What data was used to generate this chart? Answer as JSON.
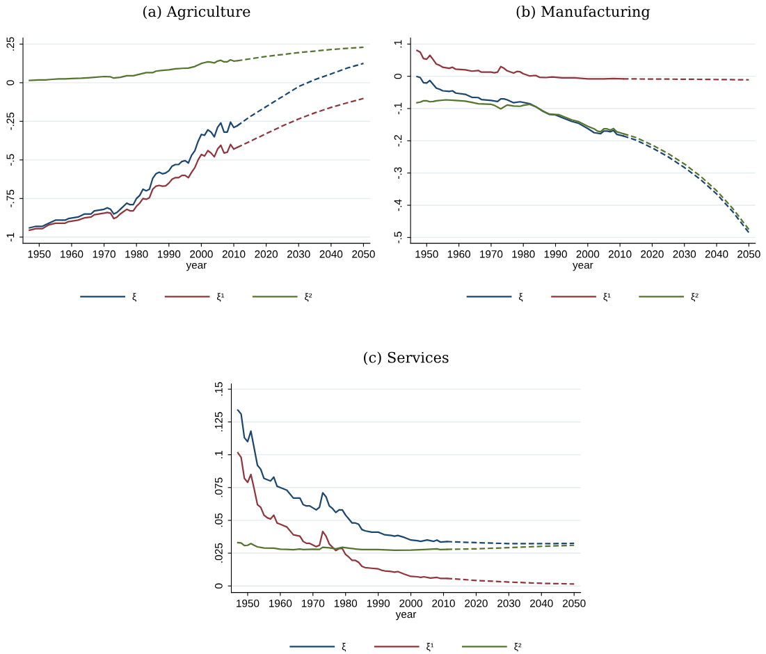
{
  "chart_data": [
    {
      "type": "line",
      "title": "(a) Agriculture",
      "xlabel": "year",
      "xlim": [
        1945,
        2052
      ],
      "ylim": [
        -1.04,
        0.29
      ],
      "xticks": [
        1950,
        1960,
        1970,
        1980,
        1990,
        2000,
        2010,
        2020,
        2030,
        2040,
        2050
      ],
      "yticks": [
        {
          "value": -1,
          "label": "-1"
        },
        {
          "value": -0.75,
          "label": "-.75"
        },
        {
          "value": -0.5,
          "label": "-.5"
        },
        {
          "value": -0.25,
          "label": "-.25"
        },
        {
          "value": 0,
          "label": "0"
        },
        {
          "value": 0.25,
          "label": ".25"
        }
      ],
      "grid": "y",
      "legend": "bottom",
      "series": [
        {
          "name": "ξ",
          "color": "#1a476f",
          "line_style": "solid",
          "x": [
            1947,
            1949,
            1951,
            1953,
            1955,
            1958,
            1959,
            1962,
            1964,
            1966,
            1967,
            1970,
            1971,
            1972,
            1973,
            1974,
            1975,
            1977,
            1978,
            1979,
            1980,
            1981,
            1982,
            1983,
            1984,
            1985,
            1986,
            1987,
            1988,
            1989,
            1990,
            1991,
            1992,
            1993,
            1994,
            1995,
            1996,
            1997,
            1998,
            1999,
            2000,
            2001,
            2002,
            2003,
            2004,
            2005,
            2006,
            2007,
            2008,
            2009,
            2010,
            2011
          ],
          "values": [
            -0.94,
            -0.93,
            -0.93,
            -0.91,
            -0.89,
            -0.89,
            -0.88,
            -0.87,
            -0.85,
            -0.85,
            -0.83,
            -0.82,
            -0.81,
            -0.82,
            -0.85,
            -0.84,
            -0.82,
            -0.78,
            -0.79,
            -0.79,
            -0.75,
            -0.73,
            -0.69,
            -0.7,
            -0.69,
            -0.62,
            -0.59,
            -0.58,
            -0.59,
            -0.585,
            -0.57,
            -0.54,
            -0.53,
            -0.53,
            -0.51,
            -0.505,
            -0.52,
            -0.47,
            -0.44,
            -0.38,
            -0.335,
            -0.34,
            -0.305,
            -0.32,
            -0.35,
            -0.29,
            -0.26,
            -0.32,
            -0.32,
            -0.255,
            -0.29,
            -0.28
          ]
        },
        {
          "name": "ξ¹",
          "color": "#90353b",
          "line_style": "solid",
          "x": [
            1947,
            1949,
            1951,
            1953,
            1955,
            1958,
            1959,
            1962,
            1964,
            1966,
            1967,
            1970,
            1971,
            1972,
            1973,
            1974,
            1975,
            1977,
            1978,
            1979,
            1980,
            1981,
            1982,
            1983,
            1984,
            1985,
            1986,
            1987,
            1988,
            1989,
            1990,
            1991,
            1992,
            1993,
            1994,
            1995,
            1996,
            1997,
            1998,
            1999,
            2000,
            2001,
            2002,
            2003,
            2004,
            2005,
            2006,
            2007,
            2008,
            2009,
            2010,
            2011
          ],
          "values": [
            -0.955,
            -0.945,
            -0.945,
            -0.92,
            -0.91,
            -0.91,
            -0.9,
            -0.89,
            -0.875,
            -0.87,
            -0.855,
            -0.845,
            -0.84,
            -0.845,
            -0.88,
            -0.87,
            -0.85,
            -0.82,
            -0.83,
            -0.83,
            -0.8,
            -0.78,
            -0.75,
            -0.755,
            -0.745,
            -0.69,
            -0.67,
            -0.665,
            -0.67,
            -0.668,
            -0.65,
            -0.625,
            -0.615,
            -0.615,
            -0.6,
            -0.6,
            -0.615,
            -0.58,
            -0.55,
            -0.5,
            -0.465,
            -0.475,
            -0.44,
            -0.455,
            -0.48,
            -0.43,
            -0.405,
            -0.455,
            -0.45,
            -0.4,
            -0.43,
            -0.42
          ]
        },
        {
          "name": "ξ²",
          "color": "#55752f",
          "line_style": "solid",
          "x": [
            1947,
            1950,
            1952,
            1954,
            1956,
            1958,
            1960,
            1963,
            1965,
            1967,
            1970,
            1972,
            1973,
            1975,
            1977,
            1979,
            1981,
            1983,
            1985,
            1986,
            1988,
            1990,
            1992,
            1994,
            1996,
            1998,
            2000,
            2001,
            2002,
            2003,
            2004,
            2005,
            2006,
            2007,
            2008,
            2009,
            2010,
            2011
          ],
          "values": [
            0.015,
            0.018,
            0.018,
            0.022,
            0.025,
            0.025,
            0.027,
            0.029,
            0.032,
            0.035,
            0.04,
            0.038,
            0.03,
            0.035,
            0.045,
            0.045,
            0.055,
            0.065,
            0.065,
            0.075,
            0.08,
            0.083,
            0.09,
            0.093,
            0.095,
            0.105,
            0.125,
            0.13,
            0.135,
            0.133,
            0.128,
            0.14,
            0.145,
            0.135,
            0.135,
            0.148,
            0.14,
            0.142
          ]
        },
        {
          "color": "#1a476f",
          "line_style": "dashed",
          "x": [
            2011,
            2015,
            2020,
            2025,
            2030,
            2035,
            2040,
            2045,
            2050
          ],
          "values": [
            -0.28,
            -0.22,
            -0.155,
            -0.09,
            -0.025,
            0.02,
            0.057,
            0.095,
            0.125
          ]
        },
        {
          "color": "#90353b",
          "line_style": "dashed",
          "x": [
            2011,
            2015,
            2020,
            2025,
            2030,
            2035,
            2040,
            2045,
            2050
          ],
          "values": [
            -0.42,
            -0.38,
            -0.33,
            -0.28,
            -0.235,
            -0.195,
            -0.16,
            -0.13,
            -0.102
          ]
        },
        {
          "color": "#55752f",
          "line_style": "dashed",
          "x": [
            2011,
            2020,
            2030,
            2040,
            2050
          ],
          "values": [
            0.142,
            0.17,
            0.195,
            0.215,
            0.23
          ]
        }
      ]
    },
    {
      "type": "line",
      "title": "(b) Manufacturing",
      "xlabel": "year",
      "xlim": [
        1945,
        2052
      ],
      "ylim": [
        -0.518,
        0.119
      ],
      "xticks": [
        1950,
        1960,
        1970,
        1980,
        1990,
        2000,
        2010,
        2020,
        2030,
        2040,
        2050
      ],
      "yticks": [
        {
          "value": -0.5,
          "label": "-.5"
        },
        {
          "value": -0.4,
          "label": "-.4"
        },
        {
          "value": -0.3,
          "label": "-.3"
        },
        {
          "value": -0.2,
          "label": "-.2"
        },
        {
          "value": -0.1,
          "label": "-.1"
        },
        {
          "value": 0,
          "label": "0"
        },
        {
          "value": 0.1,
          "label": ".1"
        }
      ],
      "grid": "y",
      "legend": "bottom",
      "series": [
        {
          "name": "ξ",
          "color": "#1a476f",
          "line_style": "solid",
          "x": [
            1947,
            1948,
            1949,
            1950,
            1951,
            1952,
            1953,
            1954,
            1955,
            1957,
            1958,
            1959,
            1962,
            1964,
            1966,
            1967,
            1970,
            1972,
            1973,
            1974,
            1975,
            1977,
            1979,
            1982,
            1984,
            1986,
            1988,
            1990,
            1992,
            1995,
            1997,
            2000,
            2002,
            2004,
            2005,
            2006,
            2007,
            2008,
            2009,
            2011
          ],
          "values": [
            -0.001,
            -0.004,
            -0.02,
            -0.021,
            -0.013,
            -0.025,
            -0.037,
            -0.04,
            -0.045,
            -0.047,
            -0.045,
            -0.052,
            -0.056,
            -0.065,
            -0.066,
            -0.072,
            -0.075,
            -0.078,
            -0.07,
            -0.07,
            -0.073,
            -0.082,
            -0.079,
            -0.085,
            -0.095,
            -0.108,
            -0.118,
            -0.12,
            -0.128,
            -0.14,
            -0.145,
            -0.162,
            -0.175,
            -0.178,
            -0.17,
            -0.17,
            -0.172,
            -0.168,
            -0.18,
            -0.185
          ]
        },
        {
          "name": "ξ¹",
          "color": "#90353b",
          "line_style": "solid",
          "x": [
            1947,
            1948,
            1949,
            1950,
            1951,
            1952,
            1953,
            1954,
            1955,
            1957,
            1958,
            1959,
            1962,
            1964,
            1966,
            1967,
            1970,
            1971,
            1972,
            1973,
            1974,
            1975,
            1977,
            1978,
            1979,
            1980,
            1982,
            1983,
            1984,
            1985,
            1987,
            1989,
            1992,
            1996,
            2000,
            2005,
            2008,
            2011
          ],
          "values": [
            0.08,
            0.075,
            0.055,
            0.053,
            0.065,
            0.052,
            0.038,
            0.034,
            0.028,
            0.025,
            0.028,
            0.022,
            0.02,
            0.016,
            0.018,
            0.013,
            0.013,
            0.011,
            0.013,
            0.03,
            0.025,
            0.017,
            0.01,
            0.015,
            0.014,
            0.008,
            0.001,
            0.002,
            0.002,
            -0.003,
            -0.004,
            -0.002,
            -0.005,
            -0.005,
            -0.008,
            -0.008,
            -0.007,
            -0.008
          ]
        },
        {
          "name": "ξ²",
          "color": "#55752f",
          "line_style": "solid",
          "x": [
            1947,
            1948,
            1949,
            1950,
            1951,
            1952,
            1953,
            1956,
            1959,
            1962,
            1964,
            1966,
            1970,
            1971,
            1973,
            1975,
            1977,
            1979,
            1980,
            1982,
            1984,
            1986,
            1988,
            1991,
            1995,
            1997,
            2000,
            2002,
            2003,
            2004,
            2005,
            2006,
            2007,
            2008,
            2009,
            2011
          ],
          "values": [
            -0.082,
            -0.08,
            -0.076,
            -0.076,
            -0.079,
            -0.078,
            -0.076,
            -0.073,
            -0.075,
            -0.077,
            -0.081,
            -0.085,
            -0.087,
            -0.09,
            -0.101,
            -0.089,
            -0.092,
            -0.093,
            -0.09,
            -0.087,
            -0.095,
            -0.107,
            -0.117,
            -0.119,
            -0.135,
            -0.14,
            -0.155,
            -0.163,
            -0.17,
            -0.172,
            -0.163,
            -0.163,
            -0.167,
            -0.162,
            -0.172,
            -0.178
          ]
        },
        {
          "color": "#1a476f",
          "line_style": "dashed",
          "x": [
            2011,
            2015,
            2020,
            2025,
            2030,
            2035,
            2040,
            2045,
            2050
          ],
          "values": [
            -0.185,
            -0.198,
            -0.222,
            -0.25,
            -0.283,
            -0.32,
            -0.365,
            -0.42,
            -0.485
          ]
        },
        {
          "color": "#90353b",
          "line_style": "dashed",
          "x": [
            2011,
            2030,
            2050
          ],
          "values": [
            -0.008,
            -0.009,
            -0.011
          ]
        },
        {
          "color": "#55752f",
          "line_style": "dashed",
          "x": [
            2011,
            2015,
            2020,
            2025,
            2030,
            2035,
            2040,
            2045,
            2050
          ],
          "values": [
            -0.178,
            -0.19,
            -0.213,
            -0.24,
            -0.272,
            -0.31,
            -0.355,
            -0.41,
            -0.475
          ]
        }
      ]
    },
    {
      "type": "line",
      "title": "(c) Services",
      "xlabel": "year",
      "xlim": [
        1945,
        2052
      ],
      "ylim": [
        -0.005,
        0.154
      ],
      "xticks": [
        1950,
        1960,
        1970,
        1980,
        1990,
        2000,
        2010,
        2020,
        2030,
        2040,
        2050
      ],
      "yticks": [
        {
          "value": 0,
          "label": "0"
        },
        {
          "value": 0.025,
          "label": ".025"
        },
        {
          "value": 0.05,
          "label": ".05"
        },
        {
          "value": 0.075,
          "label": ".075"
        },
        {
          "value": 0.1,
          "label": ".1"
        },
        {
          "value": 0.125,
          "label": ".125"
        },
        {
          "value": 0.15,
          "label": ".15"
        }
      ],
      "grid": "y",
      "legend": "bottom",
      "series": [
        {
          "name": "ξ",
          "color": "#1a476f",
          "line_style": "solid",
          "x": [
            1947,
            1948,
            1949,
            1950,
            1951,
            1952,
            1953,
            1954,
            1955,
            1956,
            1957,
            1958,
            1959,
            1960,
            1962,
            1964,
            1966,
            1967,
            1968,
            1969,
            1971,
            1972,
            1973,
            1974,
            1975,
            1976,
            1977,
            1978,
            1979,
            1980,
            1981,
            1982,
            1983,
            1984,
            1985,
            1986,
            1988,
            1990,
            1991,
            1992,
            1994,
            1995,
            1996,
            1998,
            2000,
            2002,
            2003,
            2005,
            2007,
            2008,
            2009,
            2011
          ],
          "values": [
            0.134,
            0.131,
            0.113,
            0.11,
            0.118,
            0.105,
            0.092,
            0.089,
            0.082,
            0.081,
            0.08,
            0.083,
            0.076,
            0.075,
            0.073,
            0.067,
            0.067,
            0.062,
            0.061,
            0.061,
            0.058,
            0.06,
            0.071,
            0.068,
            0.061,
            0.059,
            0.056,
            0.058,
            0.058,
            0.054,
            0.051,
            0.048,
            0.048,
            0.047,
            0.043,
            0.042,
            0.041,
            0.041,
            0.04,
            0.039,
            0.0385,
            0.038,
            0.0385,
            0.037,
            0.035,
            0.0345,
            0.034,
            0.035,
            0.034,
            0.035,
            0.0335,
            0.0338
          ]
        },
        {
          "name": "ξ¹",
          "color": "#90353b",
          "line_style": "solid",
          "x": [
            1947,
            1948,
            1949,
            1950,
            1951,
            1952,
            1953,
            1954,
            1955,
            1956,
            1957,
            1958,
            1959,
            1960,
            1961,
            1962,
            1964,
            1966,
            1967,
            1968,
            1969,
            1971,
            1972,
            1973,
            1974,
            1975,
            1977,
            1978,
            1979,
            1980,
            1981,
            1982,
            1983,
            1984,
            1985,
            1986,
            1988,
            1990,
            1991,
            1992,
            1994,
            1995,
            1996,
            1998,
            2000,
            2002,
            2003,
            2004,
            2006,
            2008,
            2009,
            2011
          ],
          "values": [
            0.1015,
            0.098,
            0.082,
            0.079,
            0.085,
            0.074,
            0.062,
            0.06,
            0.054,
            0.052,
            0.051,
            0.054,
            0.048,
            0.047,
            0.046,
            0.045,
            0.039,
            0.038,
            0.034,
            0.0325,
            0.0325,
            0.03,
            0.031,
            0.0415,
            0.038,
            0.032,
            0.027,
            0.0285,
            0.0285,
            0.024,
            0.022,
            0.0195,
            0.0195,
            0.018,
            0.015,
            0.014,
            0.0135,
            0.013,
            0.012,
            0.0115,
            0.011,
            0.0105,
            0.011,
            0.009,
            0.0073,
            0.007,
            0.0065,
            0.007,
            0.006,
            0.0065,
            0.0058,
            0.0058
          ]
        },
        {
          "name": "ξ²",
          "color": "#55752f",
          "line_style": "solid",
          "x": [
            1947,
            1948,
            1949,
            1950,
            1951,
            1952,
            1953,
            1955,
            1958,
            1960,
            1962,
            1964,
            1966,
            1967,
            1970,
            1972,
            1973,
            1975,
            1977,
            1979,
            1981,
            1983,
            1985,
            1990,
            1995,
            2000,
            2004,
            2008,
            2009,
            2011
          ],
          "values": [
            0.033,
            0.0328,
            0.0308,
            0.031,
            0.0323,
            0.031,
            0.0298,
            0.0289,
            0.0288,
            0.028,
            0.0279,
            0.0276,
            0.0281,
            0.0277,
            0.028,
            0.0279,
            0.0295,
            0.0291,
            0.0283,
            0.0295,
            0.0288,
            0.0282,
            0.0277,
            0.0277,
            0.0272,
            0.0274,
            0.0278,
            0.0283,
            0.0277,
            0.0279
          ]
        },
        {
          "color": "#1a476f",
          "line_style": "dashed",
          "x": [
            2011,
            2020,
            2030,
            2040,
            2050
          ],
          "values": [
            0.0338,
            0.033,
            0.0323,
            0.0322,
            0.0325
          ]
        },
        {
          "color": "#90353b",
          "line_style": "dashed",
          "x": [
            2011,
            2020,
            2030,
            2040,
            2050
          ],
          "values": [
            0.0058,
            0.0042,
            0.003,
            0.002,
            0.0015
          ]
        },
        {
          "color": "#55752f",
          "line_style": "dashed",
          "x": [
            2011,
            2020,
            2030,
            2040,
            2050
          ],
          "values": [
            0.0279,
            0.0283,
            0.0292,
            0.0302,
            0.031
          ]
        }
      ]
    }
  ]
}
